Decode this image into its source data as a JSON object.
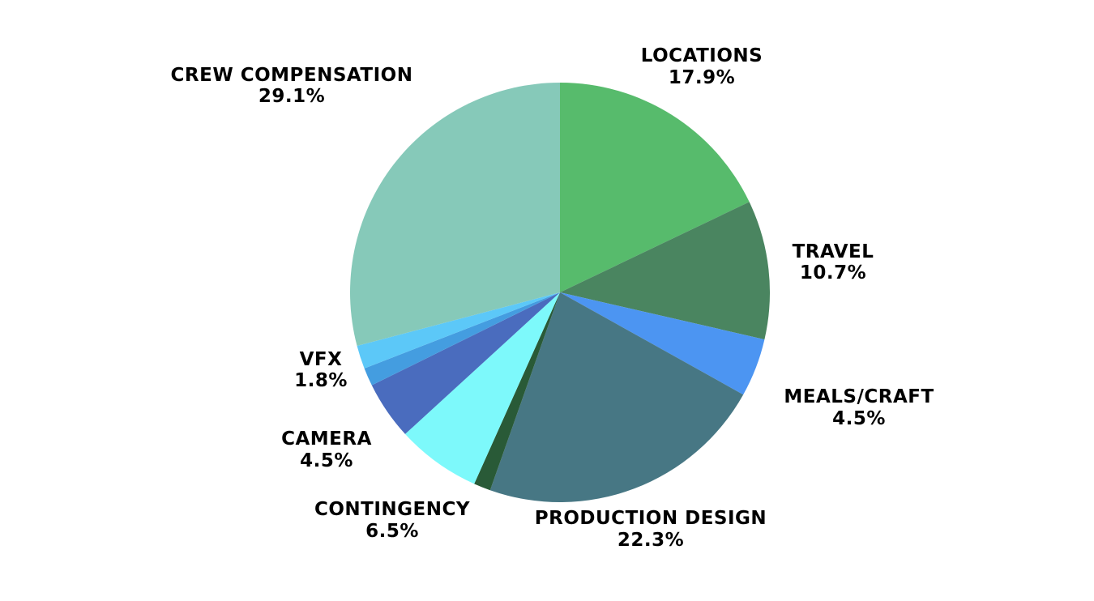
{
  "chart_data": {
    "type": "pie",
    "title": "",
    "start_angle_deg": 0,
    "direction": "clockwise",
    "slices": [
      {
        "label": "LOCATIONS",
        "value": 17.9,
        "percent_label": "17.9%",
        "color": "#57BB6C"
      },
      {
        "label": "TRAVEL",
        "value": 10.7,
        "percent_label": "10.7%",
        "color": "#4A8560"
      },
      {
        "label": "MEALS/CRAFT",
        "value": 4.5,
        "percent_label": "4.5%",
        "color": "#4C95F2"
      },
      {
        "label": "PRODUCTION DESIGN",
        "value": 22.3,
        "percent_label": "22.3%",
        "color": "#477784"
      },
      {
        "label": "",
        "value": 1.3,
        "percent_label": "",
        "color": "#295A37"
      },
      {
        "label": "CONTINGENCY",
        "value": 6.5,
        "percent_label": "6.5%",
        "color": "#7DF9FB"
      },
      {
        "label": "CAMERA",
        "value": 4.5,
        "percent_label": "4.5%",
        "color": "#4A6CBE"
      },
      {
        "label": "",
        "value": 1.4,
        "percent_label": "",
        "color": "#449DE0"
      },
      {
        "label": "VFX",
        "value": 1.8,
        "percent_label": "1.8%",
        "color": "#5CC8F8"
      },
      {
        "label": "CREW COMPENSATION",
        "value": 29.1,
        "percent_label": "29.1%",
        "color": "#86C9B9"
      }
    ]
  }
}
